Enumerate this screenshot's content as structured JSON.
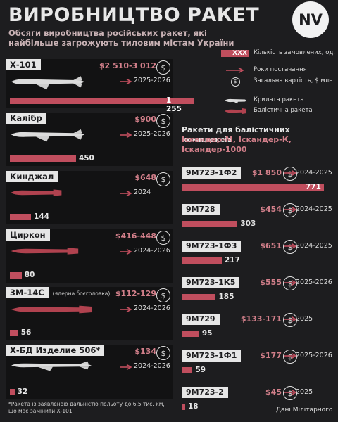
{
  "header": {
    "title": "ВИРОБНИЦТВО РАКЕТ",
    "subtitle": "Обсяги виробництва російських ракет, які найбільше загрожують тиловим містам України",
    "logo": "NV"
  },
  "legend": {
    "quantity_sample": "XXX",
    "quantity_label": "Кількість замовлених, од.",
    "years_label": "Роки постачання",
    "cost_label": "Загальна вартість, $ млн",
    "cruise_label": "Крилата ракета",
    "ballistic_label": "Балістична ракета"
  },
  "colors": {
    "accent": "#c04e5e",
    "cost": "#d27f8a",
    "background": "#1d1d1f",
    "cruise_missile": "#dcdcdc",
    "ballistic_missile": "#b0424f"
  },
  "icons": [
    "dollar-coin-icon",
    "arrow-right-icon",
    "cruise-missile-icon",
    "ballistic-missile-icon"
  ],
  "cruise": [
    {
      "name": "Х-101",
      "note": "",
      "cost": "$2 510-3 012",
      "years": "2025-2026",
      "quantity": 1255,
      "quantity_label": "1 255"
    },
    {
      "name": "Калібр",
      "note": "",
      "cost": "$900",
      "years": "2025-2026",
      "quantity": 450,
      "quantity_label": "450"
    },
    {
      "name": "Кинджал",
      "note": "",
      "cost": "$648",
      "years": "2024",
      "quantity": 144,
      "quantity_label": "144"
    },
    {
      "name": "Циркон",
      "note": "",
      "cost": "$416-448",
      "years": "2024-2026",
      "quantity": 80,
      "quantity_label": "80"
    },
    {
      "name": "3М-14С",
      "note": "(ядерна боєголовка)",
      "cost": "$112-129",
      "years": "2024-2026",
      "quantity": 56,
      "quantity_label": "56"
    },
    {
      "name": "Х-БД Изделие 506*",
      "note": "",
      "cost": "$134",
      "years": "2024-2026",
      "quantity": 32,
      "quantity_label": "32"
    }
  ],
  "ballistic_section": {
    "heading": "Ракети для балістичних комплексів",
    "systems": "Іскандер-М, Іскандер-К, Іскандер-1000"
  },
  "ballistic": [
    {
      "name": "9М723-1Ф2",
      "cost": "$1 850",
      "years": "2024-2025",
      "quantity": 771,
      "quantity_label": "771"
    },
    {
      "name": "9М728",
      "cost": "$454",
      "years": "2024-2025",
      "quantity": 303,
      "quantity_label": "303"
    },
    {
      "name": "9М723-1Ф3",
      "cost": "$651",
      "years": "2024-2025",
      "quantity": 217,
      "quantity_label": "217"
    },
    {
      "name": "9М723-1К5",
      "cost": "$555",
      "years": "2025-2026",
      "quantity": 185,
      "quantity_label": "185"
    },
    {
      "name": "9М729",
      "cost": "$133-171",
      "years": "2025",
      "quantity": 95,
      "quantity_label": "95"
    },
    {
      "name": "9М723-1Ф1",
      "cost": "$177",
      "years": "2025-2026",
      "quantity": 59,
      "quantity_label": "59"
    },
    {
      "name": "9М723-2",
      "cost": "$45",
      "years": "2025",
      "quantity": 18,
      "quantity_label": "18"
    }
  ],
  "footer": {
    "footnote": "*Ракета із заявленою дальністю польоту до 6,5 тис. км, що має замінити Х-101",
    "source": "Дані Мілітарного"
  }
}
